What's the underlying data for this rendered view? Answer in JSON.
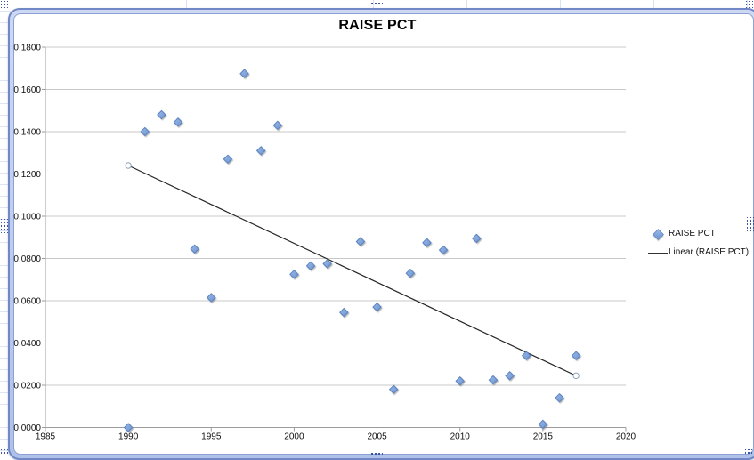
{
  "chart_data": {
    "type": "scatter",
    "title": "RAISE PCT",
    "x_axis": {
      "ticks": [
        "1985",
        "1990",
        "1995",
        "2000",
        "2005",
        "2010",
        "2015",
        "2020"
      ],
      "range": [
        1985,
        2020
      ]
    },
    "y_axis": {
      "ticks": [
        "0.1800",
        "0.1600",
        "0.1400",
        "0.1200",
        "0.1000",
        "0.0800",
        "0.0600",
        "0.0400",
        "0.0200",
        "0.0000"
      ],
      "range": [
        0,
        0.18
      ]
    },
    "grid": true,
    "legend": {
      "position": "right",
      "entries": [
        {
          "marker": "diamond",
          "label": "RAISE PCT"
        },
        {
          "marker": "line",
          "label": "Linear (RAISE PCT)"
        }
      ]
    },
    "series": [
      {
        "name": "RAISE PCT",
        "points": [
          [
            1990,
            0.0
          ],
          [
            1991,
            0.14
          ],
          [
            1992,
            0.148
          ],
          [
            1993,
            0.1445
          ],
          [
            1994,
            0.0845
          ],
          [
            1995,
            0.0615
          ],
          [
            1996,
            0.127
          ],
          [
            1997,
            0.1675
          ],
          [
            1998,
            0.131
          ],
          [
            1999,
            0.143
          ],
          [
            2000,
            0.0725
          ],
          [
            2001,
            0.0765
          ],
          [
            2002,
            0.0775
          ],
          [
            2003,
            0.0545
          ],
          [
            2004,
            0.088
          ],
          [
            2005,
            0.057
          ],
          [
            2006,
            0.018
          ],
          [
            2007,
            0.073
          ],
          [
            2008,
            0.0875
          ],
          [
            2009,
            0.084
          ],
          [
            2010,
            0.022
          ],
          [
            2011,
            0.0895
          ],
          [
            2012,
            0.0225
          ],
          [
            2013,
            0.0245
          ],
          [
            2014,
            0.034
          ],
          [
            2015,
            0.0015
          ],
          [
            2016,
            0.014
          ],
          [
            2017,
            0.034
          ]
        ]
      }
    ],
    "trendline": {
      "name": "Linear (RAISE PCT)",
      "x1": 1990,
      "y1": 0.124,
      "x2": 2017,
      "y2": 0.0245,
      "endpoint_markers": true
    },
    "colors": {
      "marker_fill_light": "#9bbae8",
      "marker_fill_dark": "#6b93d0",
      "marker_stroke": "#5a83c0",
      "trendline": "#262626",
      "trendline_handle_stroke": "#8fa3b8",
      "gridline": "#c8c8c8",
      "axis": "#9c9c9c",
      "frame_border": "#7187c6",
      "frame_band": "#bccbee"
    }
  }
}
